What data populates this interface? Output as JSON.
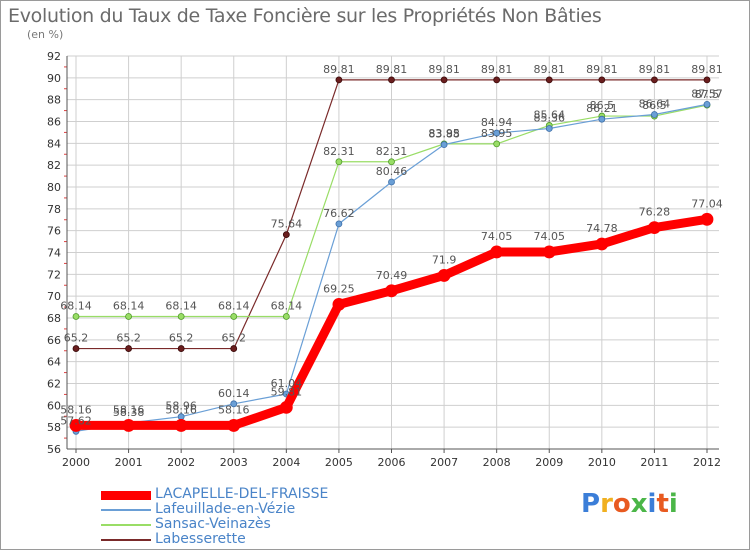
{
  "header": {
    "title": "Evolution du Taux de Taxe Foncière sur les Propriétés Non Bâties",
    "unit": "(en %)"
  },
  "logo": {
    "text": "Proxiti"
  },
  "colors": {
    "LACAPELLE-DEL-FRAISSE": "#ff0000",
    "Lafeuillade-en-Vézie": "#6a9fd6",
    "Sansac-Veinazès": "#99dd66",
    "Labesserette": "#7a2a2a",
    "grid": "#cfcfcf",
    "legend_text": "#4a84c8"
  },
  "chart_data": {
    "type": "line",
    "title": "Evolution du Taux de Taxe Foncière sur les Propriétés Non Bâties",
    "ylabel": "(en %)",
    "xlabel": "",
    "ylim": [
      56,
      92
    ],
    "ytick_step": 2,
    "x": [
      2000,
      2001,
      2002,
      2003,
      2004,
      2005,
      2006,
      2007,
      2008,
      2009,
      2010,
      2011,
      2012
    ],
    "legend_position": "bottom-left",
    "series": [
      {
        "name": "LACAPELLE-DEL-FRAISSE",
        "values": [
          58.16,
          58.16,
          58.16,
          58.16,
          59.81,
          69.25,
          70.49,
          71.9,
          74.05,
          74.05,
          74.78,
          76.28,
          77.04
        ],
        "labels": [
          "58.16",
          "58.16",
          "58.16",
          "58.16",
          "59.81",
          "69.25",
          "70.49",
          "71.9",
          "74.05",
          "74.05",
          "74.78",
          "76.28",
          "77.04"
        ]
      },
      {
        "name": "Lafeuillade-en-Vézie",
        "values": [
          57.62,
          58.38,
          58.96,
          60.14,
          61.04,
          76.62,
          80.46,
          83.88,
          84.94,
          85.36,
          86.21,
          86.64,
          87.57
        ],
        "labels": [
          "57.62",
          "58.38",
          "58.96",
          "60.14",
          "61.04",
          "76.62",
          "80.46",
          "83.88",
          "84.94",
          "85.36",
          "86.21",
          "86.64",
          "87.57"
        ]
      },
      {
        "name": "Sansac-Veinazès",
        "values": [
          68.14,
          68.14,
          68.14,
          68.14,
          68.14,
          82.31,
          82.31,
          83.95,
          83.95,
          85.64,
          86.5,
          86.5,
          87.5
        ],
        "labels": [
          "68.14",
          "68.14",
          "68.14",
          "68.14",
          "68.14",
          "82.31",
          "82.31",
          "83.95",
          "83.95",
          "85.64",
          "86.5",
          "86.5",
          "87.5"
        ]
      },
      {
        "name": "Labesserette",
        "values": [
          65.2,
          65.2,
          65.2,
          65.2,
          75.64,
          89.81,
          89.81,
          89.81,
          89.81,
          89.81,
          89.81,
          89.81,
          89.81
        ],
        "labels": [
          "65.2",
          "65.2",
          "65.2",
          "65.2",
          "75.64",
          "89.81",
          "89.81",
          "89.81",
          "89.81",
          "89.81",
          "89.81",
          "89.81",
          "89.81"
        ]
      }
    ]
  }
}
